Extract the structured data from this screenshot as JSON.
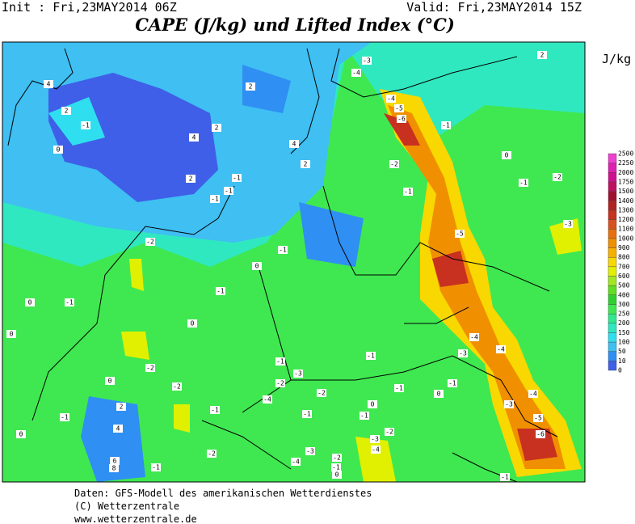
{
  "header": {
    "init": "Init : Fri,23MAY2014 06Z",
    "valid": "Valid: Fri,23MAY2014 15Z",
    "title": "CAPE (J/kg) und Lifted Index (°C)"
  },
  "legend": {
    "unit": "J/kg",
    "levels": [
      0,
      10,
      50,
      100,
      150,
      200,
      250,
      300,
      400,
      500,
      600,
      700,
      800,
      900,
      1000,
      1100,
      1200,
      1300,
      1400,
      1500,
      1750,
      2000,
      2250,
      2500
    ],
    "colors": [
      "#3f5fe8",
      "#2f8ff2",
      "#3fbff2",
      "#2fdfef",
      "#2fe8c0",
      "#2fe890",
      "#3fe850",
      "#2fd030",
      "#5fe020",
      "#a0e820",
      "#e0f000",
      "#f8d800",
      "#f8b000",
      "#f09000",
      "#e87010",
      "#d85020",
      "#c83020",
      "#b02020",
      "#a01030",
      "#c01060",
      "#d01090",
      "#e020b0",
      "#f040d0"
    ]
  },
  "map": {
    "contour_labels": [
      "4",
      "2",
      "-1",
      "0",
      "2",
      "2",
      "4",
      "2",
      "4",
      "2",
      "-1",
      "-1",
      "-1",
      "-3",
      "-4",
      "-4",
      "-5",
      "-6",
      "-1",
      "2",
      "0",
      "-2",
      "-1",
      "-1",
      "-2",
      "-3",
      "-5",
      "-2",
      "-1",
      "0",
      "-1",
      "-1",
      "0",
      "0",
      "0",
      "-4",
      "-3",
      "-4",
      "-1",
      "-1",
      "-2",
      "-3",
      "-2",
      "-1",
      "0",
      "-2",
      "-1",
      "-2",
      "0",
      "-4",
      "-4",
      "-3",
      "0",
      "2",
      "-1",
      "-1",
      "-1",
      "-1",
      "-2",
      "-3",
      "4",
      "0",
      "-5",
      "-6",
      "-3",
      "-2",
      "-4",
      "-4",
      "-2",
      "-1",
      "6",
      "8",
      "-1",
      "0",
      "-1"
    ]
  },
  "footer": {
    "lines": [
      "Daten: GFS-Modell des amerikanischen Wetterdienstes",
      "(C) Wetterzentrale",
      "www.wetterzentrale.de"
    ]
  }
}
